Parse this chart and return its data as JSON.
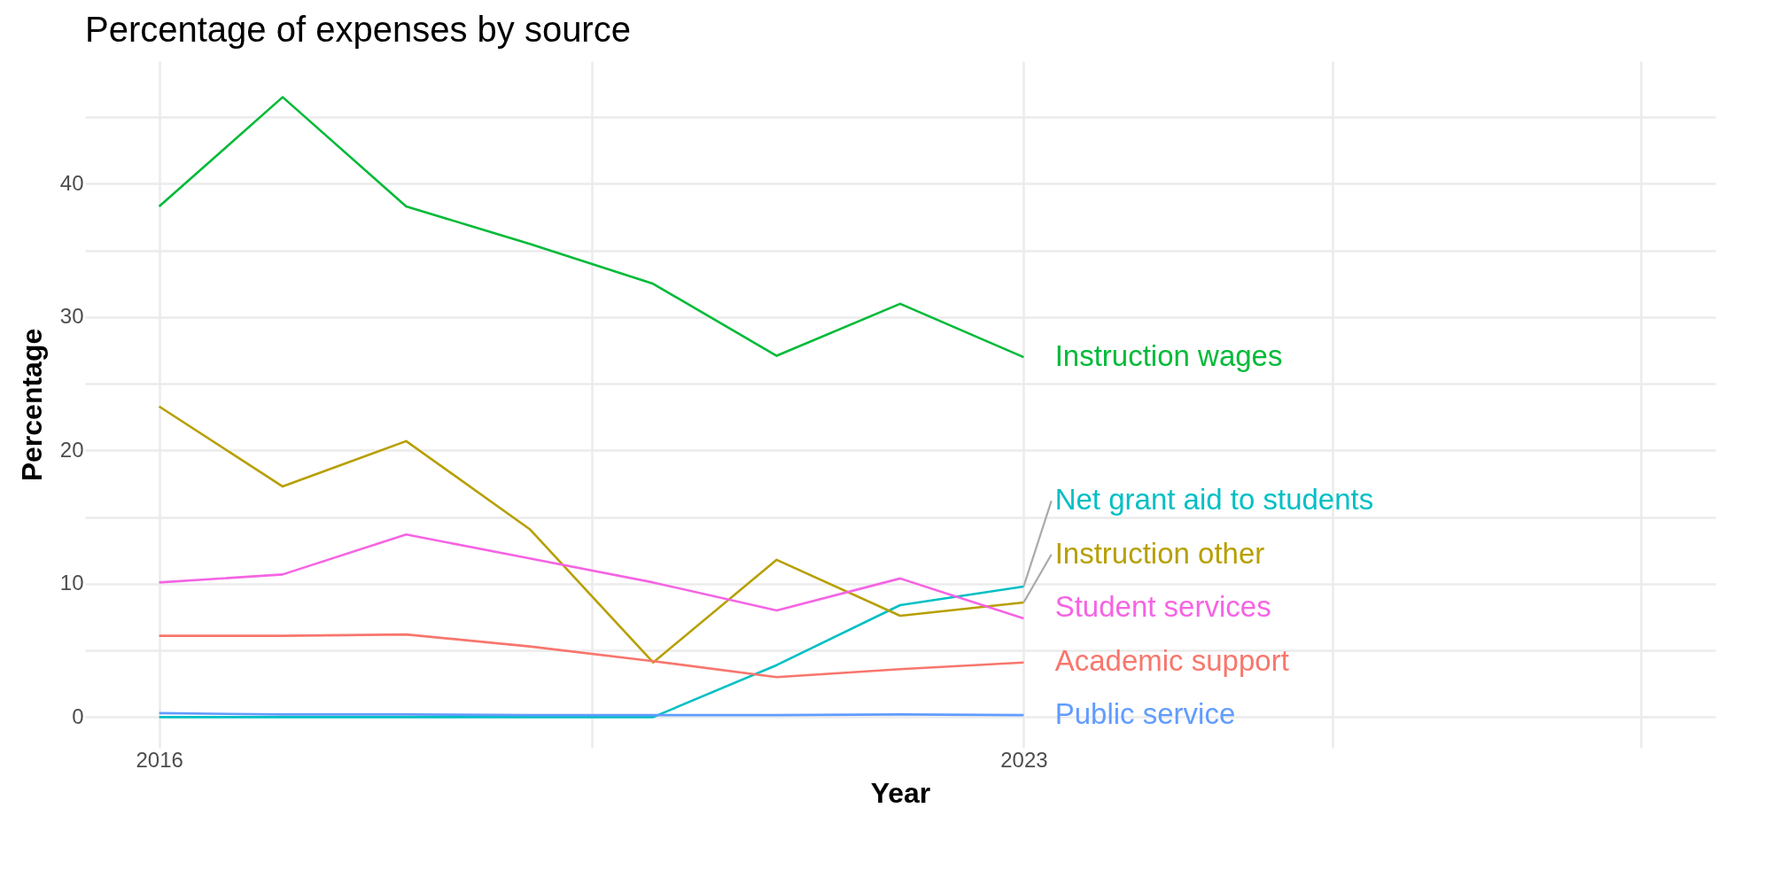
{
  "chart_data": {
    "type": "line",
    "title": "Percentage of expenses by source",
    "xlabel": "Year",
    "ylabel": "Percentage",
    "x": [
      2016,
      2017,
      2018,
      2019,
      2020,
      2021,
      2022,
      2023
    ],
    "series": [
      {
        "name": "Instruction wages",
        "color": "#00ba38",
        "values": [
          38.3,
          46.5,
          38.3,
          35.5,
          32.5,
          27.1,
          31.0,
          27.0
        ]
      },
      {
        "name": "Net grant aid to students",
        "color": "#00bfc4",
        "values": [
          0,
          0,
          0,
          0,
          0,
          3.9,
          8.4,
          9.8
        ]
      },
      {
        "name": "Instruction other",
        "color": "#b79f00",
        "values": [
          23.3,
          17.3,
          20.7,
          14.1,
          4.1,
          11.8,
          7.6,
          8.6
        ]
      },
      {
        "name": "Student services",
        "color": "#f564e3",
        "values": [
          10.1,
          10.7,
          13.7,
          11.9,
          10.1,
          8.0,
          10.4,
          7.4
        ]
      },
      {
        "name": "Academic support",
        "color": "#f8766d",
        "values": [
          6.1,
          6.1,
          6.2,
          5.3,
          4.2,
          3.0,
          3.6,
          4.1
        ]
      },
      {
        "name": "Public service",
        "color": "#619cff",
        "values": [
          0.3,
          0.2,
          0.2,
          0.15,
          0.15,
          0.15,
          0.2,
          0.15
        ]
      }
    ],
    "xlim": [
      2015.4,
      2028.6
    ],
    "xticks": [
      2016,
      {
        "value": 2019.5,
        "label": null
      },
      2023,
      {
        "value": 2025.5,
        "label": null
      },
      {
        "value": 2028,
        "label": null
      }
    ],
    "ylim": [
      -2.3,
      49.2
    ],
    "yticks": [
      0,
      {
        "value": 5,
        "label": null
      },
      10,
      {
        "value": 15,
        "label": null
      },
      20,
      {
        "value": 25,
        "label": null
      },
      30,
      {
        "value": 35,
        "label": null
      },
      40,
      {
        "value": 45,
        "label": null
      }
    ],
    "grid": true,
    "legend": false,
    "line_style": "solid",
    "marker": "none"
  }
}
